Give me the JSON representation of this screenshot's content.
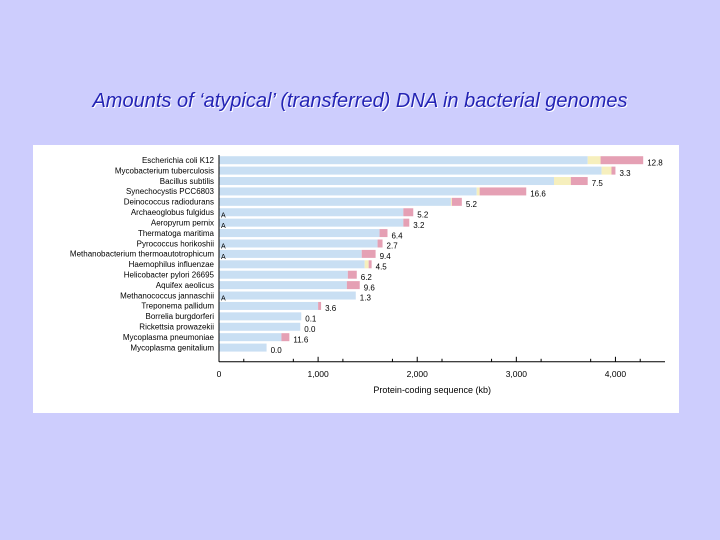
{
  "slide": {
    "title": "Amounts of ‘atypical’ (transferred) DNA in bacterial genomes"
  },
  "colors": {
    "background": "#cdcdfd",
    "title": "#2323b4",
    "native_bar": "#c9dff3",
    "segment_yellow": "#f6efbd",
    "segment_pink": "#e5a0b4"
  },
  "chart_data": {
    "type": "bar",
    "orientation": "horizontal",
    "title": "",
    "xlabel": "Protein-coding sequence (kb)",
    "ylabel": "",
    "xlim": [
      0,
      4500
    ],
    "xticks": [
      0,
      1000,
      2000,
      3000,
      4000
    ],
    "xtick_labels": [
      "0",
      "1,000",
      "2,000",
      "3,000",
      "4,000"
    ],
    "grid": false,
    "legend": "none",
    "categories": [
      "Escherichia coli K12",
      "Mycobacterium tuberculosis",
      "Bacillus subtilis",
      "Synechocystis PCC6803",
      "Deinococcus radiodurans",
      "Archaeoglobus fulgidus",
      "Aeropyrum pernix",
      "Thermatoga maritima",
      "Pyrococcus horikoshii",
      "Methanobacterium thermoautotrophicum",
      "Haemophilus influenzae",
      "Helicobacter pylori 26695",
      "Aquifex aeolicus",
      "Methanococcus jannaschii",
      "Treponema pallidum",
      "Borrelia burgdorferi",
      "Rickettsia prowazekii",
      "Mycoplasma pneumoniae",
      "Mycoplasma genitalium"
    ],
    "series": [
      {
        "values": [
          3720,
          3860,
          3380,
          2600,
          2340,
          1860,
          1860,
          1620,
          1600,
          1440,
          1470,
          1300,
          1290,
          1380,
          1000,
          830,
          820,
          630,
          480
        ]
      },
      {
        "values": [
          130,
          100,
          170,
          30,
          10,
          0,
          0,
          0,
          0,
          0,
          40,
          0,
          0,
          0,
          0,
          0,
          0,
          0,
          0
        ]
      },
      {
        "values": [
          430,
          40,
          170,
          470,
          100,
          100,
          60,
          80,
          50,
          140,
          30,
          90,
          130,
          0,
          30,
          0,
          0,
          80,
          0
        ]
      }
    ],
    "annotations": [
      "12.8",
      "3.3",
      "7.5",
      "16.6",
      "5.2",
      "5.2",
      "3.2",
      "6.4",
      "2.7",
      "9.4",
      "4.5",
      "6.2",
      "9.6",
      "1.3",
      "3.6",
      "0.1",
      "0.0",
      "11.6",
      "0.0"
    ],
    "markers": [
      "",
      "",
      "",
      "",
      "",
      "A",
      "A",
      "",
      "A",
      "A",
      "",
      "",
      "",
      "A",
      "",
      "",
      "",
      "",
      ""
    ]
  }
}
